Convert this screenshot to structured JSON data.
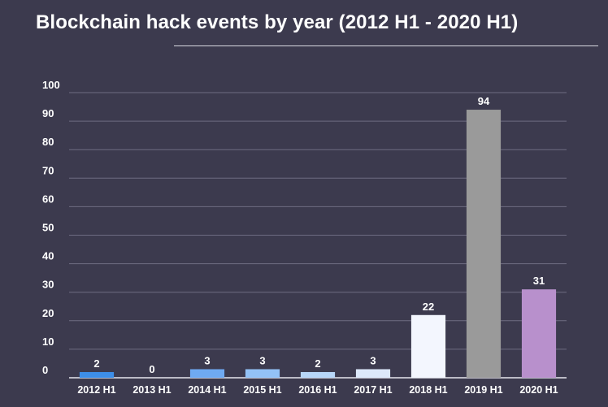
{
  "chart_data": {
    "type": "bar",
    "title": "Blockchain hack events by year (2012 H1 - 2020 H1)",
    "categories": [
      "2012 H1",
      "2013 H1",
      "2014 H1",
      "2015 H1",
      "2016 H1",
      "2017 H1",
      "2018 H1",
      "2019 H1",
      "2020 H1"
    ],
    "values": [
      2,
      0,
      3,
      3,
      2,
      3,
      22,
      94,
      31
    ],
    "bar_colors": [
      "#3d8ee8",
      "#5a9ff0",
      "#6faaf2",
      "#93c2f6",
      "#b7d6f8",
      "#dde9fb",
      "#f3f6fe",
      "#9a9a9a",
      "#b890cc"
    ],
    "ylim": [
      0,
      100
    ],
    "yticks": [
      0,
      10,
      20,
      30,
      40,
      50,
      60,
      70,
      80,
      90,
      100
    ],
    "xlabel": "",
    "ylabel": "",
    "grid": true,
    "data_labels": true
  }
}
